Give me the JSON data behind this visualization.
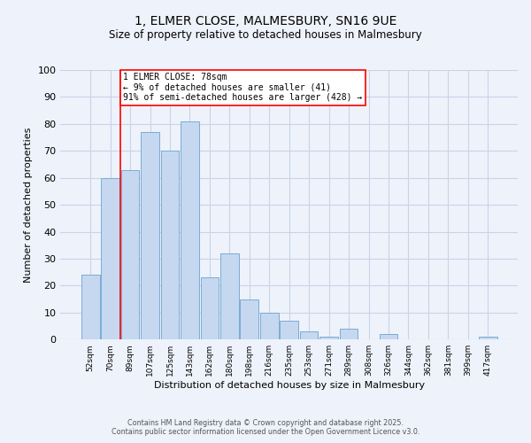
{
  "title_line1": "1, ELMER CLOSE, MALMESBURY, SN16 9UE",
  "title_line2": "Size of property relative to detached houses in Malmesbury",
  "xlabel": "Distribution of detached houses by size in Malmesbury",
  "ylabel": "Number of detached properties",
  "bar_labels": [
    "52sqm",
    "70sqm",
    "89sqm",
    "107sqm",
    "125sqm",
    "143sqm",
    "162sqm",
    "180sqm",
    "198sqm",
    "216sqm",
    "235sqm",
    "253sqm",
    "271sqm",
    "289sqm",
    "308sqm",
    "326sqm",
    "344sqm",
    "362sqm",
    "381sqm",
    "399sqm",
    "417sqm"
  ],
  "bar_values": [
    24,
    60,
    63,
    77,
    70,
    81,
    23,
    32,
    15,
    10,
    7,
    3,
    1,
    4,
    0,
    2,
    0,
    0,
    0,
    0,
    1
  ],
  "bar_color": "#c5d8f0",
  "bar_edge_color": "#7aadd4",
  "ylim": [
    0,
    100
  ],
  "yticks": [
    0,
    10,
    20,
    30,
    40,
    50,
    60,
    70,
    80,
    90,
    100
  ],
  "annotation_line1": "1 ELMER CLOSE: 78sqm",
  "annotation_line2": "← 9% of detached houses are smaller (41)",
  "annotation_line3": "91% of semi-detached houses are larger (428) →",
  "vline_x": 1.5,
  "footer_line1": "Contains HM Land Registry data © Crown copyright and database right 2025.",
  "footer_line2": "Contains public sector information licensed under the Open Government Licence v3.0.",
  "background_color": "#eef2fa",
  "grid_color": "#c8d4e8",
  "bar_edge_linewidth": 0.7,
  "title1_fontsize": 10,
  "title2_fontsize": 8.5,
  "ylabel_fontsize": 8,
  "xlabel_fontsize": 8,
  "ytick_fontsize": 8,
  "xtick_fontsize": 6.5,
  "ann_fontsize": 7,
  "footer_fontsize": 5.8
}
